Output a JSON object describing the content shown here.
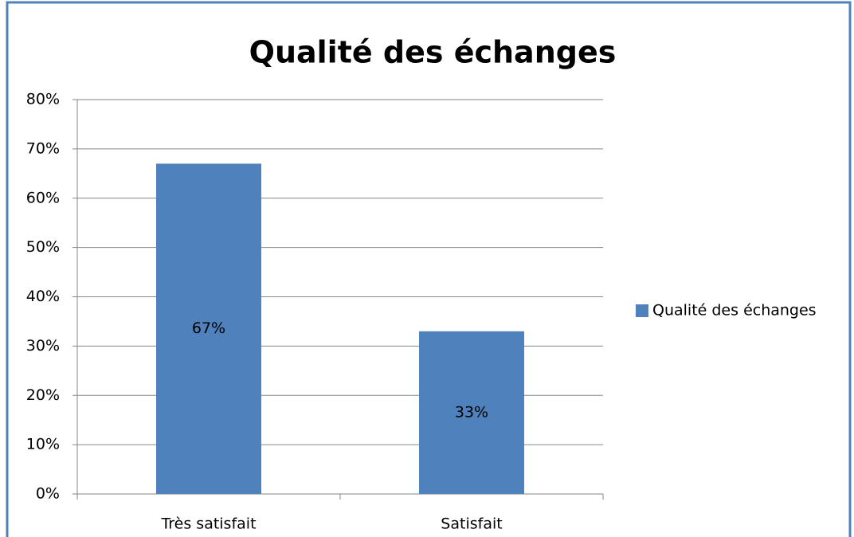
{
  "chart_data": {
    "type": "bar",
    "title": "Qualité des échanges",
    "categories": [
      "Très satisfait",
      "Satisfait"
    ],
    "series": [
      {
        "name": "Qualité des échanges",
        "color": "#4f81bd",
        "values": [
          67,
          33
        ],
        "value_labels": [
          "67%",
          "33%"
        ]
      }
    ],
    "ylim": [
      0,
      80
    ],
    "yticks": [
      {
        "value": 0,
        "label": "0%"
      },
      {
        "value": 10,
        "label": "10%"
      },
      {
        "value": 20,
        "label": "20%"
      },
      {
        "value": 30,
        "label": "30%"
      },
      {
        "value": 40,
        "label": "40%"
      },
      {
        "value": 50,
        "label": "50%"
      },
      {
        "value": 60,
        "label": "60%"
      },
      {
        "value": 70,
        "label": "70%"
      },
      {
        "value": 80,
        "label": "80%"
      }
    ],
    "grid": true,
    "legend": "right"
  }
}
